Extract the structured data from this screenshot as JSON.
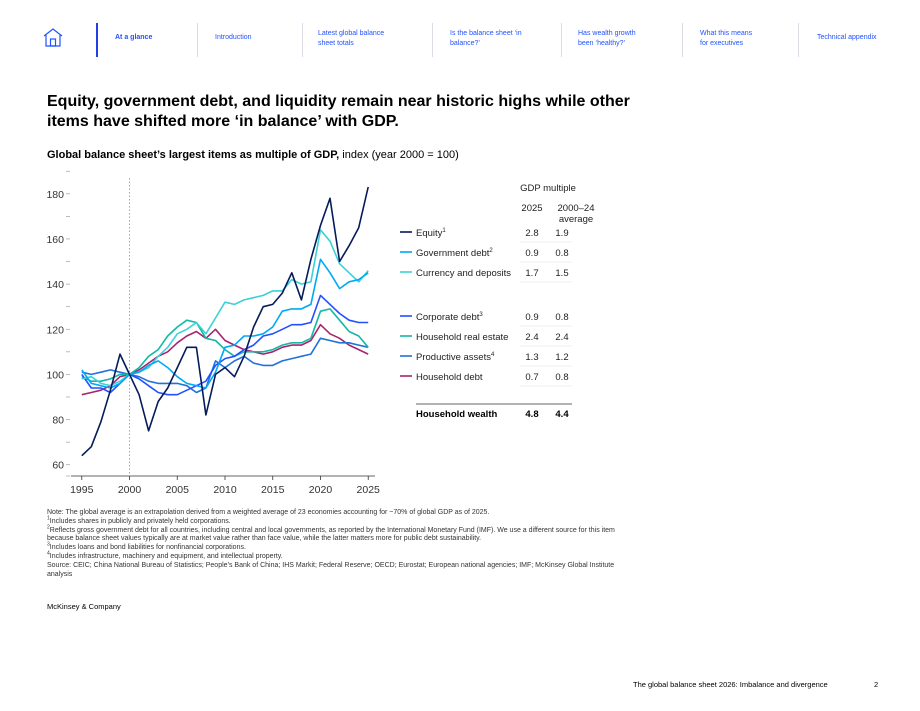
{
  "nav": {
    "items": [
      {
        "label": "At a glance",
        "active": true
      },
      {
        "label": "Introduction"
      },
      {
        "label": "Latest global balance sheet totals"
      },
      {
        "label": "Is the balance sheet ‘in balance?’"
      },
      {
        "label": "Has wealth growth been ‘healthy?’"
      },
      {
        "label": "What this means for executives"
      },
      {
        "label": "Technical appendix"
      }
    ]
  },
  "headline": "Equity, government debt, and liquidity remain near historic highs while other items have shifted more ‘in balance’ with GDP.",
  "subtitle": {
    "bold": "Global balance sheet’s largest items as multiple of GDP,",
    "rest": " index (year 2000 = 100)"
  },
  "chart_data": {
    "type": "line",
    "title": "Global balance sheet’s largest items as multiple of GDP",
    "ylabel": "index (year 2000 = 100)",
    "x": [
      1995,
      1996,
      1997,
      1998,
      1999,
      2000,
      2001,
      2002,
      2003,
      2004,
      2005,
      2006,
      2007,
      2008,
      2009,
      2010,
      2011,
      2012,
      2013,
      2014,
      2015,
      2016,
      2017,
      2018,
      2019,
      2020,
      2021,
      2022,
      2023,
      2024,
      2025
    ],
    "xticks": [
      1995,
      2000,
      2005,
      2010,
      2015,
      2020,
      2025
    ],
    "yticks": [
      60,
      80,
      100,
      120,
      140,
      160,
      180
    ],
    "ylim": [
      55,
      187
    ],
    "xlim": [
      1994.5,
      2025.5
    ],
    "reference_line_x": 2000,
    "table_header": {
      "group": "GDP multiple",
      "col1": "2025",
      "col2": "2000–24 average"
    },
    "series": [
      {
        "name": "Equity",
        "sup": "1",
        "color": "#051c5a",
        "gdp_2025": "2.8",
        "gdp_avg": "1.9",
        "values": [
          64,
          68,
          79,
          93,
          109,
          100,
          91,
          75,
          88,
          94,
          103,
          112,
          112,
          82,
          100,
          103,
          99,
          108,
          121,
          130,
          131,
          136,
          145,
          133,
          151,
          166,
          178,
          150,
          157,
          165,
          183
        ]
      },
      {
        "name": "Government debt",
        "sup": "2",
        "color": "#00a9f4",
        "gdp_2025": "0.9",
        "gdp_avg": "0.8",
        "values": [
          102,
          96,
          95,
          94,
          96,
          100,
          101,
          104,
          106,
          103,
          99,
          96,
          95,
          94,
          101,
          112,
          113,
          117,
          117,
          118,
          121,
          128,
          129,
          129,
          131,
          151,
          145,
          138,
          141,
          142,
          145
        ]
      },
      {
        "name": "Currency and deposits",
        "sup": "",
        "color": "#3bd1d8",
        "gdp_2025": "1.7",
        "gdp_avg": "1.5",
        "values": [
          98,
          99,
          96,
          95,
          97,
          100,
          101,
          103,
          108,
          112,
          118,
          120,
          123,
          118,
          125,
          132,
          131,
          133,
          134,
          135,
          137,
          137,
          142,
          140,
          141,
          164,
          159,
          149,
          145,
          141,
          146
        ]
      },
      {
        "name": "Corporate debt",
        "sup": "3",
        "color": "#2251ff",
        "gdp_2025": "0.9",
        "gdp_avg": "0.8",
        "values": [
          100,
          94,
          94,
          92,
          96,
          100,
          98,
          95,
          92,
          91,
          91,
          93,
          95,
          97,
          104,
          107,
          108,
          111,
          113,
          117,
          118,
          120,
          122,
          122,
          123,
          135,
          131,
          127,
          124,
          123,
          123
        ]
      },
      {
        "name": "Household real estate",
        "sup": "",
        "color": "#14b8a6",
        "gdp_2025": "2.4",
        "gdp_avg": "2.4",
        "values": [
          99,
          97,
          97,
          98,
          100,
          100,
          103,
          108,
          111,
          117,
          121,
          124,
          123,
          116,
          115,
          111,
          108,
          110,
          110,
          110,
          111,
          113,
          114,
          114,
          116,
          128,
          129,
          124,
          119,
          117,
          112
        ]
      },
      {
        "name": "Productive assets",
        "sup": "4",
        "color": "#1f72d9",
        "gdp_2025": "1.3",
        "gdp_avg": "1.2",
        "values": [
          101,
          100,
          101,
          102,
          101,
          100,
          99,
          97,
          96,
          96,
          96,
          95,
          92,
          94,
          106,
          103,
          106,
          108,
          105,
          104,
          104,
          106,
          107,
          108,
          109,
          116,
          115,
          114,
          114,
          113,
          112
        ]
      },
      {
        "name": "Household debt",
        "sup": "",
        "color": "#a7256e",
        "gdp_2025": "0.7",
        "gdp_avg": "0.8",
        "values": [
          91,
          92,
          93,
          95,
          99,
          100,
          102,
          105,
          108,
          110,
          114,
          117,
          119,
          116,
          120,
          115,
          113,
          111,
          110,
          109,
          110,
          112,
          113,
          113,
          115,
          122,
          118,
          116,
          113,
          111,
          109
        ]
      }
    ],
    "total": {
      "name": "Household wealth",
      "gdp_2025": "4.8",
      "gdp_avg": "4.4"
    }
  },
  "notes": [
    {
      "sup": "",
      "text": "Note: The global average is an extrapolation derived from a weighted average of 23 economies accounting for ~70% of global GDP as of 2025."
    },
    {
      "sup": "1",
      "text": "Includes shares in publicly and privately held corporations."
    },
    {
      "sup": "2",
      "text": "Reflects gross government debt for all countries, including central and local governments, as reported by the International Monetary Fund (IMF). We use a different source for this item because balance sheet values typically are at market value rather than face value, while the latter matters more for public debt sustainability."
    },
    {
      "sup": "3",
      "text": "Includes loans and bond liabilities for nonfinancial corporations."
    },
    {
      "sup": "4",
      "text": "Includes infrastructure, machinery and equipment, and intellectual property."
    },
    {
      "sup": "",
      "text": "Source: CEIC; China National Bureau of Statistics; People’s Bank of China; IHS Markit; Federal Reserve; OECD; Eurostat; European national agencies; IMF; McKinsey Global Institute analysis"
    }
  ],
  "brand": "McKinsey & Company",
  "footer": {
    "title": "The global balance sheet 2026: Imbalance and divergence",
    "page": "2"
  }
}
